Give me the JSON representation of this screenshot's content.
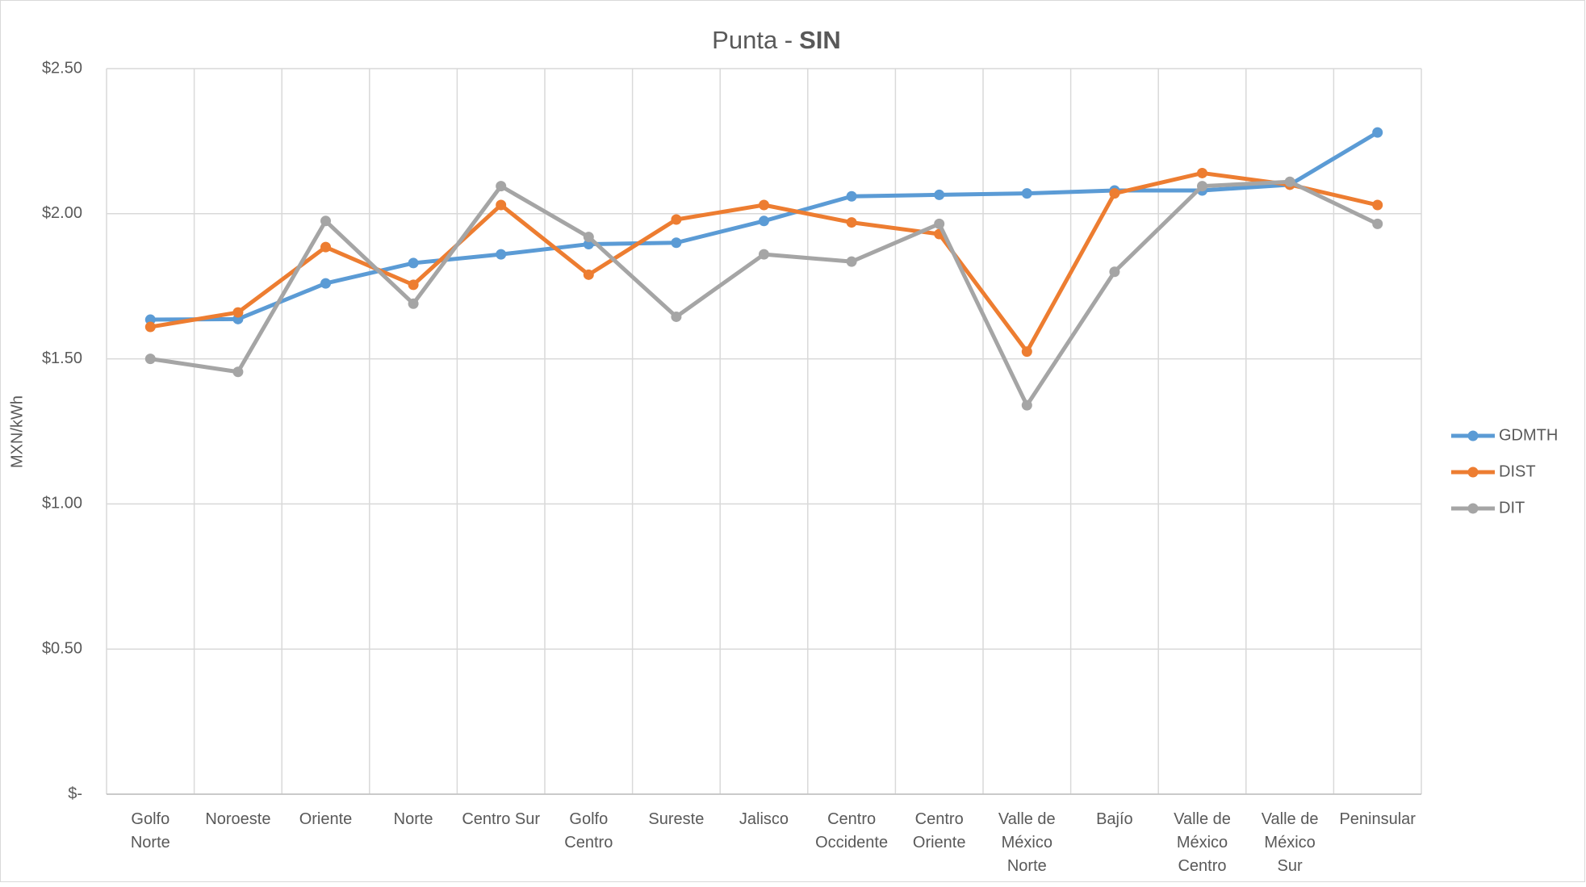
{
  "chart_data": {
    "type": "line",
    "title": "Punta -",
    "title_bold": "SIN",
    "y_label": "MXN/kWh",
    "categories": [
      "Golfo\nNorte",
      "Noroeste",
      "Oriente",
      "Norte",
      "Centro Sur",
      "Golfo\nCentro",
      "Sureste",
      "Jalisco",
      "Centro\nOccidente",
      "Centro\nOriente",
      "Valle de\nMéxico\nNorte",
      "Bajío",
      "Valle de\nMéxico\nCentro",
      "Valle de\nMéxico\nSur",
      "Peninsular"
    ],
    "series": [
      {
        "name": "GDMTH",
        "color": "#5b9bd5",
        "values": [
          1.635,
          1.637,
          1.76,
          1.83,
          1.86,
          1.895,
          1.9,
          1.975,
          2.06,
          2.065,
          2.07,
          2.08,
          2.08,
          2.1,
          2.28
        ]
      },
      {
        "name": "DIST",
        "color": "#ed7d31",
        "values": [
          1.61,
          1.66,
          1.885,
          1.755,
          2.03,
          1.79,
          1.98,
          2.03,
          1.97,
          1.93,
          1.525,
          2.07,
          2.14,
          2.1,
          2.03
        ]
      },
      {
        "name": "DIT",
        "color": "#a5a5a5",
        "values": [
          1.5,
          1.455,
          1.975,
          1.69,
          2.095,
          1.92,
          1.645,
          1.86,
          1.835,
          1.965,
          1.34,
          1.8,
          2.095,
          2.11,
          1.965
        ]
      }
    ],
    "ylim": [
      0,
      2.5
    ],
    "yticks": [
      {
        "value": 0,
        "label": "$-"
      },
      {
        "value": 0.5,
        "label": "$0.50"
      },
      {
        "value": 1,
        "label": "$1.00"
      },
      {
        "value": 1.5,
        "label": "$1.50"
      },
      {
        "value": 2,
        "label": "$2.00"
      },
      {
        "value": 2.5,
        "label": "$2.50"
      }
    ],
    "grid": true,
    "xgrid": true,
    "legend": "right"
  }
}
